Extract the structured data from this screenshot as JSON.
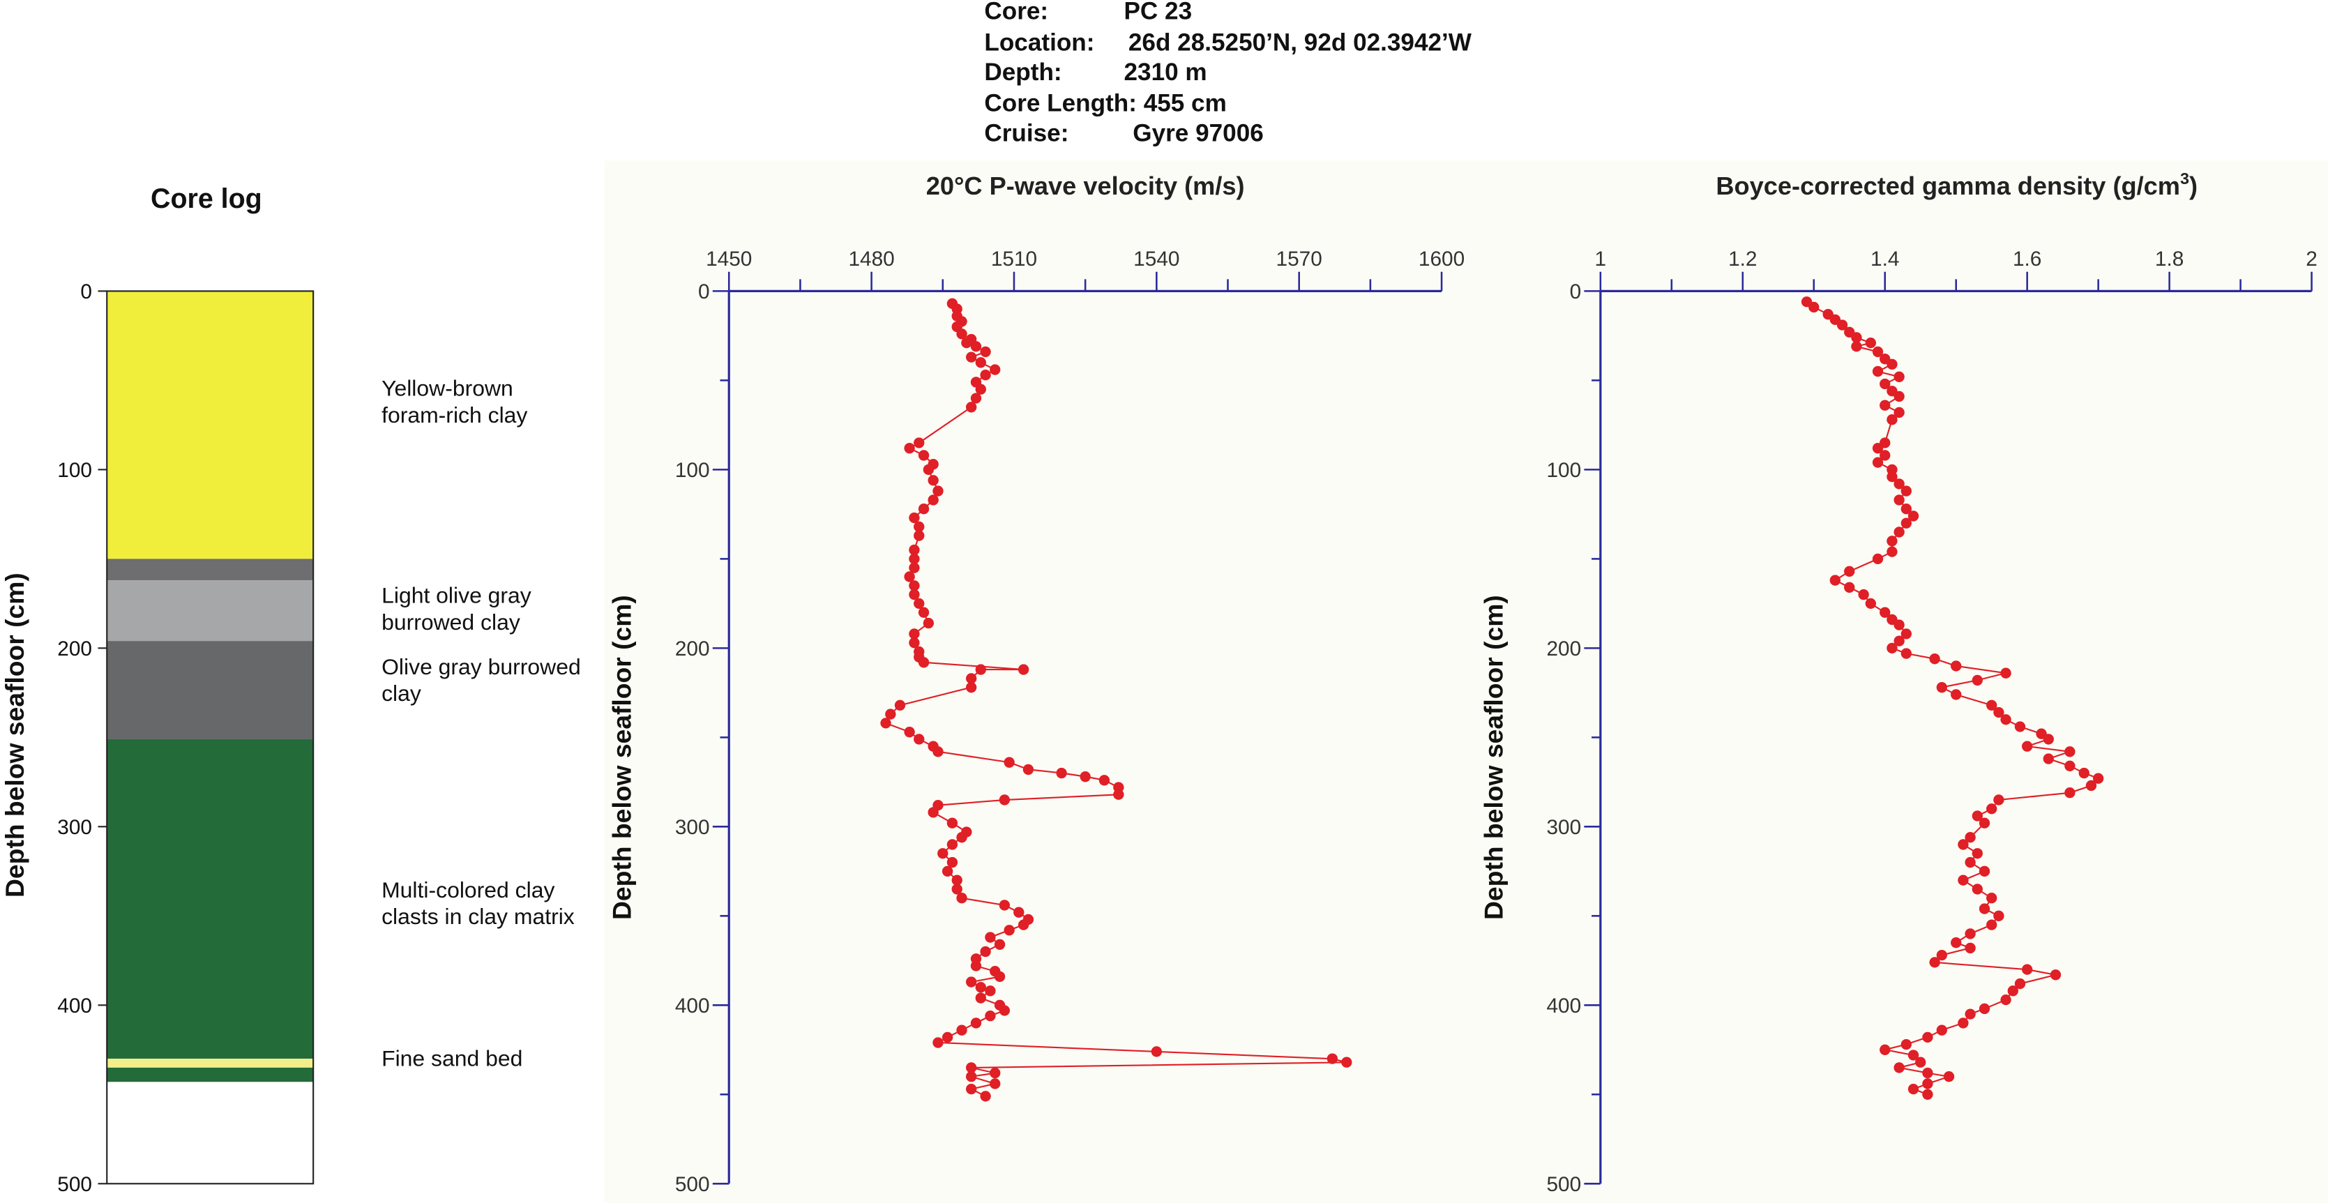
{
  "header": {
    "core_label": "Core:",
    "core_value": "PC 23",
    "location_label": "Location:",
    "location_value": "26d 28.5250’N, 92d 02.3942’W",
    "depth_label": "Depth:",
    "depth_value": "2310 m",
    "core_length": "Core Length: 455 cm",
    "cruise_label": "Cruise:",
    "cruise_value": "Gyre 97006"
  },
  "colors": {
    "series": "#e01f26",
    "axis": "#2a2a9c",
    "panel_bg": "#fcfcf6"
  },
  "chart_data": [
    {
      "type": "table",
      "title": "Core log",
      "ylabel": "Depth below seafloor (cm)",
      "ylim": [
        0,
        500
      ],
      "yticks": [
        "0",
        "100",
        "200",
        "300",
        "400",
        "500"
      ],
      "units": [
        {
          "top": 0,
          "bottom": 150,
          "color": "#f0ee3b"
        },
        {
          "top": 150,
          "bottom": 162,
          "color": "#6e6e70"
        },
        {
          "top": 162,
          "bottom": 196,
          "color": "#a6a7a9"
        },
        {
          "top": 196,
          "bottom": 251,
          "color": "#66686a"
        },
        {
          "top": 251,
          "bottom": 430,
          "color": "#246b3a"
        },
        {
          "top": 430,
          "bottom": 435,
          "color": "#f2ee8a"
        },
        {
          "top": 435,
          "bottom": 443,
          "color": "#246b3a"
        },
        {
          "top": 443,
          "bottom": 500,
          "color": "#ffffff"
        }
      ],
      "labels": [
        {
          "lines": [
            "Yellow-brown",
            "foram-rich clay"
          ],
          "depth": 62
        },
        {
          "lines": [
            "Light olive gray",
            "burrowed clay"
          ],
          "depth": 178
        },
        {
          "lines": [
            "Olive gray burrowed",
            "clay"
          ],
          "depth": 218
        },
        {
          "lines": [
            "Multi-colored clay",
            "clasts in clay matrix"
          ],
          "depth": 343
        },
        {
          "lines": [
            "Fine sand bed"
          ],
          "depth": 430
        }
      ]
    },
    {
      "type": "line",
      "title": "20°C P-wave velocity (m/s)",
      "ylabel": "Depth below seafloor (cm)",
      "xlim": [
        1450,
        1600
      ],
      "ylim": [
        0,
        500
      ],
      "xticks": [
        "1450",
        "1480",
        "1510",
        "1540",
        "1570",
        "1600"
      ],
      "yticks": [
        "0",
        "100",
        "200",
        "300",
        "400",
        "500"
      ],
      "points": [
        [
          1497,
          7
        ],
        [
          1498,
          10
        ],
        [
          1498,
          14
        ],
        [
          1499,
          17
        ],
        [
          1498,
          20
        ],
        [
          1499,
          24
        ],
        [
          1501,
          27
        ],
        [
          1500,
          29
        ],
        [
          1502,
          31
        ],
        [
          1504,
          34
        ],
        [
          1501,
          37
        ],
        [
          1503,
          40
        ],
        [
          1506,
          44
        ],
        [
          1504,
          47
        ],
        [
          1502,
          51
        ],
        [
          1503,
          55
        ],
        [
          1502,
          60
        ],
        [
          1501,
          65
        ],
        [
          1490,
          85
        ],
        [
          1488,
          88
        ],
        [
          1491,
          92
        ],
        [
          1493,
          97
        ],
        [
          1492,
          100
        ],
        [
          1493,
          106
        ],
        [
          1494,
          112
        ],
        [
          1493,
          117
        ],
        [
          1491,
          122
        ],
        [
          1489,
          127
        ],
        [
          1490,
          132
        ],
        [
          1490,
          137
        ],
        [
          1489,
          145
        ],
        [
          1489,
          150
        ],
        [
          1489,
          155
        ],
        [
          1488,
          160
        ],
        [
          1489,
          165
        ],
        [
          1489,
          170
        ],
        [
          1490,
          175
        ],
        [
          1491,
          180
        ],
        [
          1492,
          186
        ],
        [
          1489,
          192
        ],
        [
          1489,
          197
        ],
        [
          1490,
          202
        ],
        [
          1490,
          205
        ],
        [
          1491,
          208
        ],
        [
          1512,
          212
        ],
        [
          1503,
          212
        ],
        [
          1501,
          217
        ],
        [
          1501,
          222
        ],
        [
          1486,
          232
        ],
        [
          1484,
          237
        ],
        [
          1483,
          242
        ],
        [
          1488,
          247
        ],
        [
          1490,
          251
        ],
        [
          1493,
          255
        ],
        [
          1494,
          258
        ],
        [
          1509,
          264
        ],
        [
          1513,
          268
        ],
        [
          1520,
          270
        ],
        [
          1525,
          272
        ],
        [
          1529,
          274
        ],
        [
          1532,
          278
        ],
        [
          1532,
          282
        ],
        [
          1508,
          285
        ],
        [
          1494,
          288
        ],
        [
          1493,
          292
        ],
        [
          1497,
          298
        ],
        [
          1500,
          303
        ],
        [
          1499,
          306
        ],
        [
          1497,
          310
        ],
        [
          1495,
          315
        ],
        [
          1497,
          320
        ],
        [
          1496,
          325
        ],
        [
          1498,
          330
        ],
        [
          1498,
          335
        ],
        [
          1499,
          340
        ],
        [
          1508,
          344
        ],
        [
          1511,
          348
        ],
        [
          1513,
          352
        ],
        [
          1512,
          355
        ],
        [
          1509,
          358
        ],
        [
          1505,
          362
        ],
        [
          1507,
          366
        ],
        [
          1504,
          370
        ],
        [
          1502,
          374
        ],
        [
          1502,
          378
        ],
        [
          1506,
          381
        ],
        [
          1507,
          384
        ],
        [
          1501,
          387
        ],
        [
          1503,
          390
        ],
        [
          1505,
          392
        ],
        [
          1503,
          396
        ],
        [
          1507,
          400
        ],
        [
          1508,
          403
        ],
        [
          1505,
          406
        ],
        [
          1502,
          410
        ],
        [
          1499,
          414
        ],
        [
          1496,
          418
        ],
        [
          1494,
          421
        ],
        [
          1540,
          426
        ],
        [
          1577,
          430
        ],
        [
          1580,
          432
        ],
        [
          1501,
          435
        ],
        [
          1506,
          438
        ],
        [
          1501,
          440
        ],
        [
          1506,
          444
        ],
        [
          1501,
          447
        ],
        [
          1504,
          451
        ]
      ]
    },
    {
      "type": "line",
      "title": "Boyce-corrected gamma density (g/cm",
      "title_sup": "3",
      "title_end": ")",
      "ylabel": "Depth below seafloor (cm)",
      "xlim": [
        1,
        2
      ],
      "ylim": [
        0,
        500
      ],
      "xticks": [
        "1",
        "1.2",
        "1.4",
        "1.6",
        "1.8",
        "2"
      ],
      "yticks": [
        "0",
        "100",
        "200",
        "300",
        "400",
        "500"
      ],
      "points": [
        [
          1.29,
          6
        ],
        [
          1.3,
          9
        ],
        [
          1.32,
          13
        ],
        [
          1.33,
          16
        ],
        [
          1.34,
          19
        ],
        [
          1.35,
          23
        ],
        [
          1.36,
          26
        ],
        [
          1.38,
          29
        ],
        [
          1.36,
          31
        ],
        [
          1.39,
          34
        ],
        [
          1.4,
          38
        ],
        [
          1.41,
          41
        ],
        [
          1.39,
          45
        ],
        [
          1.42,
          48
        ],
        [
          1.4,
          52
        ],
        [
          1.41,
          56
        ],
        [
          1.42,
          59
        ],
        [
          1.4,
          64
        ],
        [
          1.42,
          68
        ],
        [
          1.41,
          72
        ],
        [
          1.4,
          85
        ],
        [
          1.39,
          88
        ],
        [
          1.4,
          92
        ],
        [
          1.39,
          96
        ],
        [
          1.41,
          100
        ],
        [
          1.41,
          104
        ],
        [
          1.42,
          108
        ],
        [
          1.43,
          112
        ],
        [
          1.42,
          117
        ],
        [
          1.43,
          122
        ],
        [
          1.44,
          126
        ],
        [
          1.43,
          130
        ],
        [
          1.42,
          135
        ],
        [
          1.41,
          140
        ],
        [
          1.41,
          146
        ],
        [
          1.39,
          150
        ],
        [
          1.35,
          157
        ],
        [
          1.33,
          162
        ],
        [
          1.35,
          166
        ],
        [
          1.37,
          170
        ],
        [
          1.38,
          175
        ],
        [
          1.4,
          180
        ],
        [
          1.41,
          184
        ],
        [
          1.42,
          187
        ],
        [
          1.43,
          192
        ],
        [
          1.42,
          196
        ],
        [
          1.41,
          200
        ],
        [
          1.43,
          203
        ],
        [
          1.47,
          206
        ],
        [
          1.5,
          210
        ],
        [
          1.57,
          214
        ],
        [
          1.53,
          218
        ],
        [
          1.48,
          222
        ],
        [
          1.5,
          226
        ],
        [
          1.55,
          232
        ],
        [
          1.56,
          236
        ],
        [
          1.57,
          240
        ],
        [
          1.59,
          244
        ],
        [
          1.62,
          248
        ],
        [
          1.63,
          251
        ],
        [
          1.6,
          255
        ],
        [
          1.66,
          258
        ],
        [
          1.63,
          262
        ],
        [
          1.66,
          266
        ],
        [
          1.68,
          270
        ],
        [
          1.7,
          273
        ],
        [
          1.69,
          277
        ],
        [
          1.66,
          281
        ],
        [
          1.56,
          285
        ],
        [
          1.55,
          290
        ],
        [
          1.53,
          294
        ],
        [
          1.54,
          298
        ],
        [
          1.52,
          306
        ],
        [
          1.51,
          310
        ],
        [
          1.53,
          315
        ],
        [
          1.52,
          320
        ],
        [
          1.54,
          325
        ],
        [
          1.51,
          330
        ],
        [
          1.53,
          335
        ],
        [
          1.55,
          340
        ],
        [
          1.54,
          346
        ],
        [
          1.56,
          350
        ],
        [
          1.55,
          355
        ],
        [
          1.52,
          360
        ],
        [
          1.5,
          365
        ],
        [
          1.52,
          368
        ],
        [
          1.48,
          372
        ],
        [
          1.47,
          376
        ],
        [
          1.6,
          380
        ],
        [
          1.64,
          383
        ],
        [
          1.59,
          388
        ],
        [
          1.58,
          392
        ],
        [
          1.57,
          397
        ],
        [
          1.54,
          402
        ],
        [
          1.52,
          405
        ],
        [
          1.51,
          410
        ],
        [
          1.48,
          414
        ],
        [
          1.46,
          418
        ],
        [
          1.43,
          422
        ],
        [
          1.4,
          425
        ],
        [
          1.44,
          428
        ],
        [
          1.45,
          432
        ],
        [
          1.42,
          435
        ],
        [
          1.46,
          438
        ],
        [
          1.49,
          440
        ],
        [
          1.46,
          444
        ],
        [
          1.44,
          447
        ],
        [
          1.46,
          450
        ]
      ]
    }
  ]
}
